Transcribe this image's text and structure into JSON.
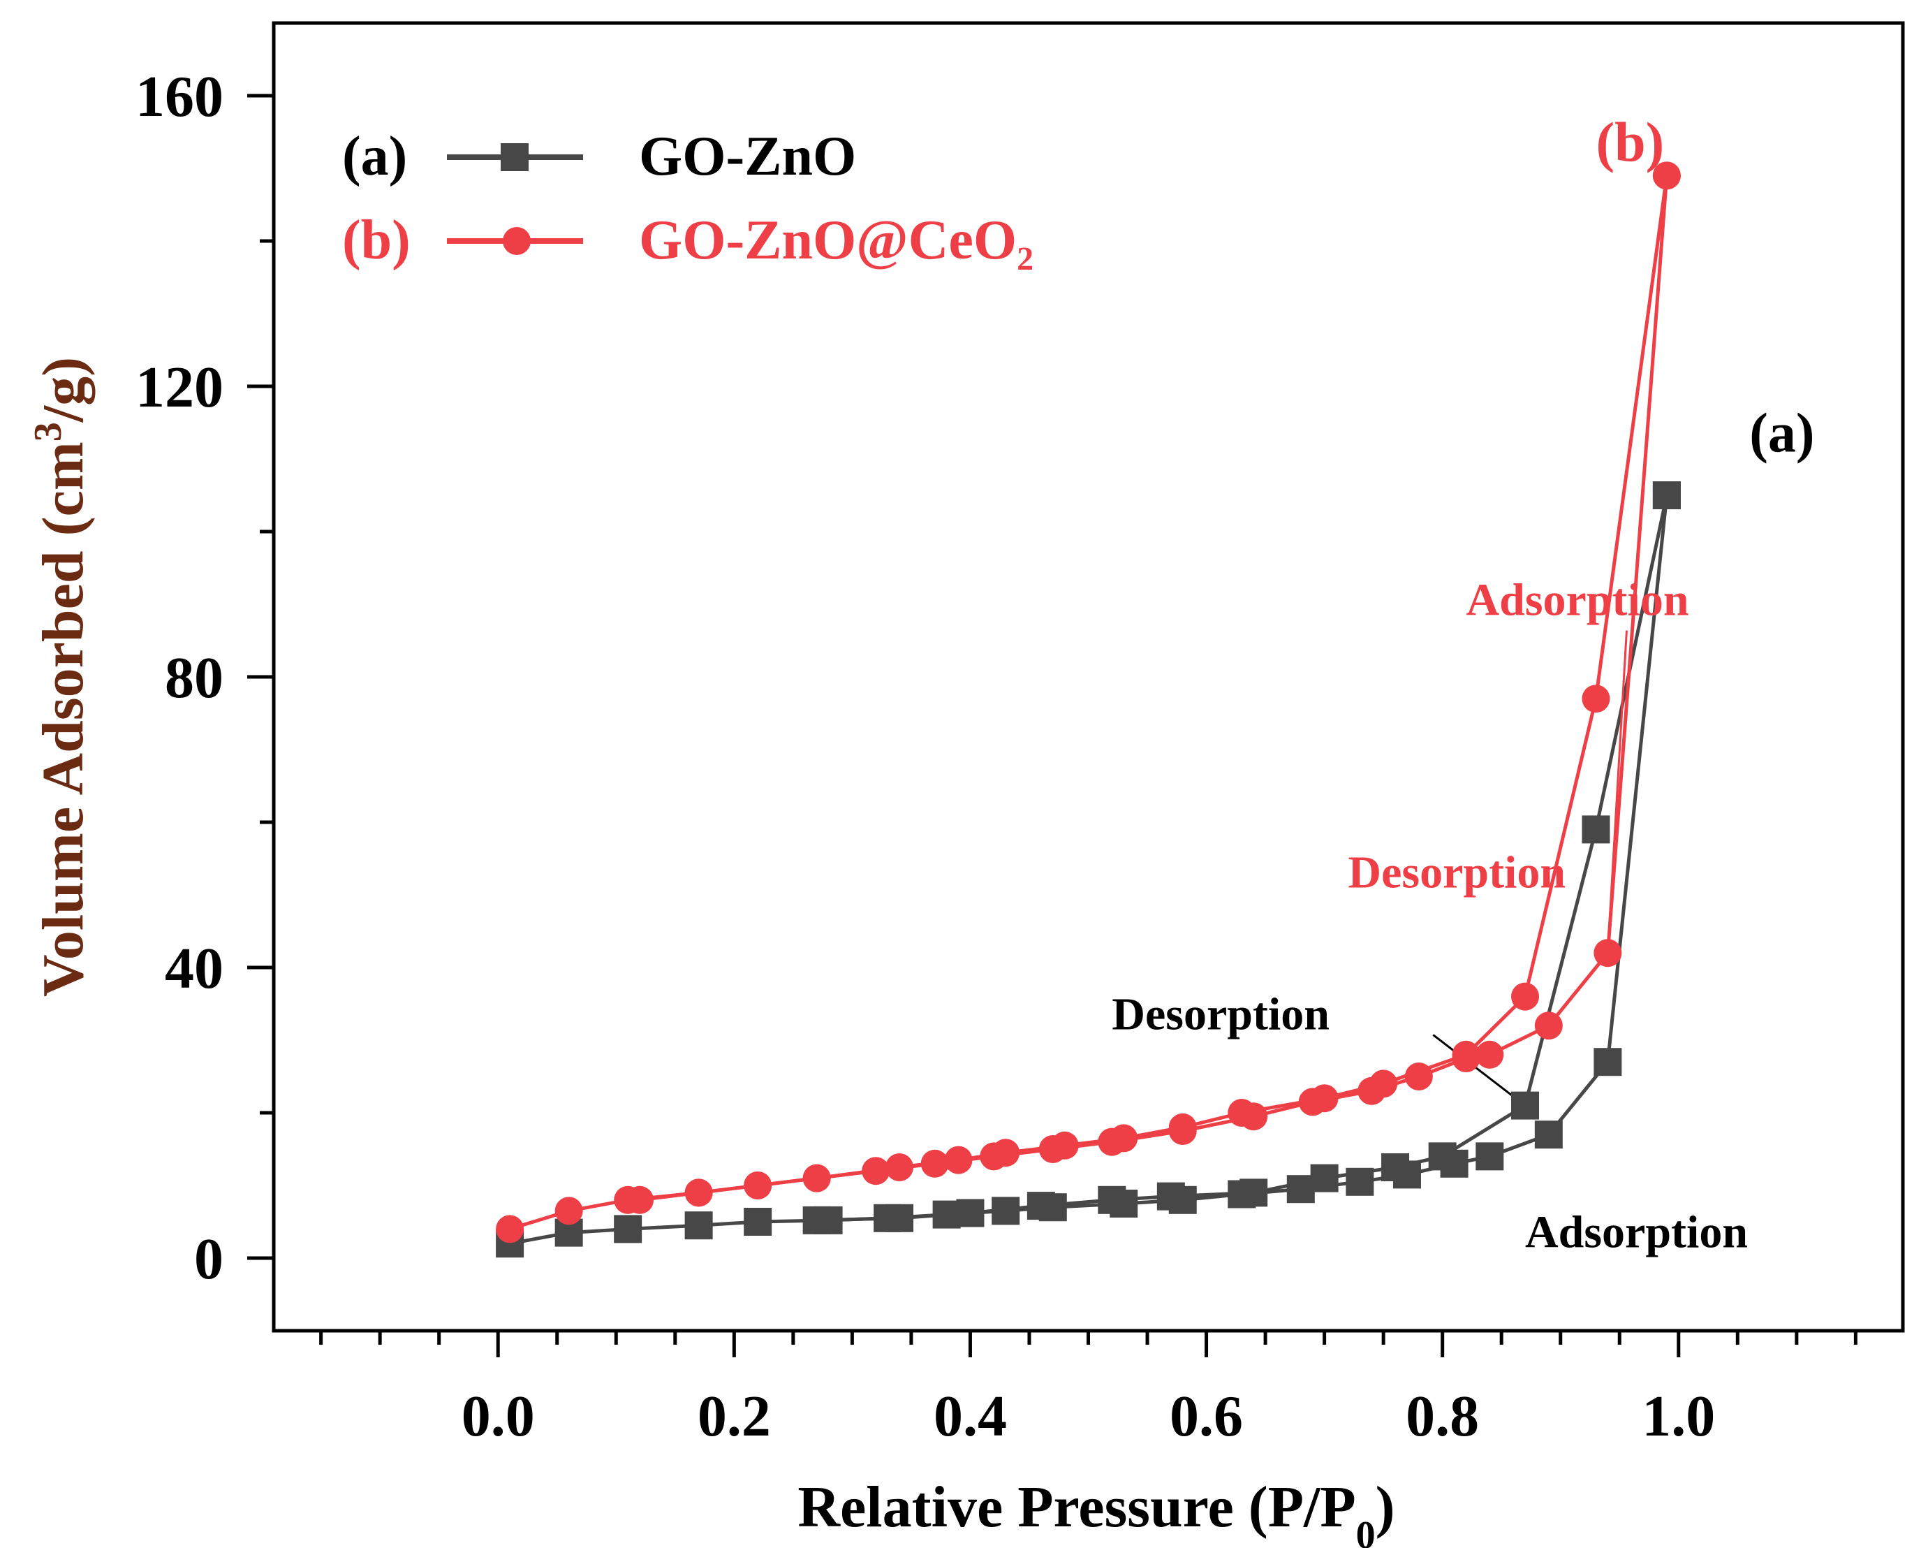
{
  "chart_data": {
    "type": "line",
    "title": "",
    "xlabel": "Relative Pressure (P/P0)",
    "ylabel": "Volume Adsorbed (cm3/g)",
    "xlim": [
      -0.19,
      1.19
    ],
    "ylim": [
      -10,
      170
    ],
    "xticks": [
      "0.0",
      "0.2",
      "0.4",
      "0.6",
      "0.8",
      "1.0"
    ],
    "xtick_values": [
      0.0,
      0.2,
      0.4,
      0.6,
      0.8,
      1.0
    ],
    "yticks": [
      "0",
      "40",
      "80",
      "120",
      "160"
    ],
    "ytick_values": [
      0,
      40,
      80,
      120,
      160
    ],
    "grid": false,
    "legend_position": "top-left",
    "legend": [
      {
        "tag": "(a)",
        "name": "GO-ZnO"
      },
      {
        "tag": "(b)",
        "name": "GO-ZnO@CeO₂"
      }
    ],
    "series": [
      {
        "name": "GO-ZnO",
        "tag": "(a)",
        "color": "#474747",
        "marker": "square",
        "adsorption": {
          "x": [
            0.01,
            0.06,
            0.11,
            0.17,
            0.22,
            0.28,
            0.33,
            0.38,
            0.43,
            0.47,
            0.53,
            0.58,
            0.63,
            0.68,
            0.73,
            0.77,
            0.81,
            0.84,
            0.89,
            0.94,
            0.99
          ],
          "y": [
            2,
            3.5,
            4,
            4.5,
            5,
            5.2,
            5.5,
            6,
            6.5,
            7,
            7.5,
            8,
            8.8,
            9.5,
            10.5,
            11.5,
            13,
            14,
            17,
            27,
            105
          ]
        },
        "desorption": {
          "x": [
            0.99,
            0.93,
            0.87,
            0.8,
            0.76,
            0.7,
            0.64,
            0.57,
            0.52,
            0.46,
            0.4,
            0.34,
            0.27
          ],
          "y": [
            105,
            59,
            21,
            14,
            12.5,
            11,
            9,
            8.5,
            8,
            7.2,
            6.2,
            5.5,
            5.2
          ]
        }
      },
      {
        "name": "GO-ZnO@CeO₂",
        "tag": "(b)",
        "color": "#ee3f46",
        "marker": "circle",
        "adsorption": {
          "x": [
            0.01,
            0.06,
            0.11,
            0.17,
            0.22,
            0.27,
            0.32,
            0.37,
            0.42,
            0.47,
            0.52,
            0.58,
            0.64,
            0.69,
            0.74,
            0.78,
            0.82,
            0.84,
            0.89,
            0.94,
            0.99
          ],
          "y": [
            4,
            6.5,
            8,
            9,
            10,
            11,
            12,
            13,
            14,
            15,
            16,
            17.5,
            19.5,
            21.5,
            23,
            25,
            27.5,
            28,
            32,
            42,
            149
          ]
        },
        "desorption": {
          "x": [
            0.99,
            0.93,
            0.87,
            0.82,
            0.75,
            0.7,
            0.63,
            0.58,
            0.53,
            0.48,
            0.43,
            0.39,
            0.34,
            0.27,
            0.22,
            0.17,
            0.12
          ],
          "y": [
            149,
            77,
            36,
            28,
            24,
            22,
            20,
            18,
            16.5,
            15.5,
            14.5,
            13.5,
            12.5,
            11,
            10,
            9,
            8
          ]
        }
      }
    ],
    "annotations": [
      {
        "text": "(b)",
        "color": "#ee3f46",
        "x": 0.93,
        "y": 151
      },
      {
        "text": "(a)",
        "color": "#000000",
        "x": 1.06,
        "y": 111
      },
      {
        "text": "Adsorption",
        "color": "#ee3f46",
        "x": 0.82,
        "y": 88.5,
        "arrow_to": [
          0.94,
          42
        ]
      },
      {
        "text": "Desorption",
        "color": "#ee3f46",
        "x": 0.72,
        "y": 51
      },
      {
        "text": "Desorption",
        "color": "#000000",
        "x": 0.52,
        "y": 31.5,
        "arrow_to": [
          0.87,
          21
        ]
      },
      {
        "text": "Adsorption",
        "color": "#000000",
        "x": 0.87,
        "y": 1.5
      }
    ]
  }
}
